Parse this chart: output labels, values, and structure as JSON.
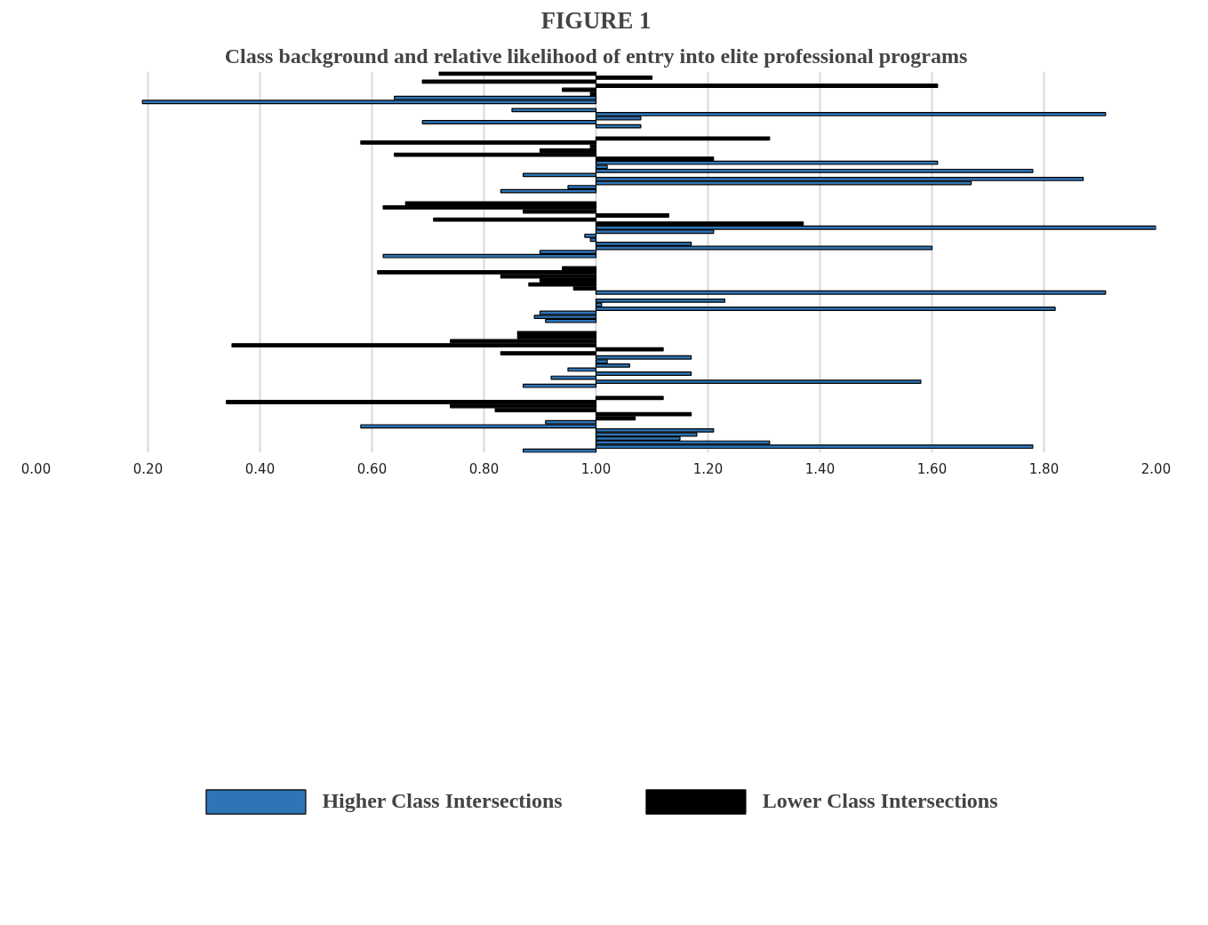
{
  "chart_data": {
    "type": "bar",
    "orientation": "horizontal",
    "title": "FIGURE 1",
    "subtitle": "Class background and relative likelihood of entry into elite professional programs",
    "categories": [
      null,
      null,
      null,
      null,
      null,
      null,
      null,
      null,
      null,
      null,
      null,
      null,
      null,
      null,
      null,
      null,
      null,
      null,
      null,
      null,
      null,
      null,
      null,
      null,
      null,
      null,
      null,
      null,
      null,
      null,
      null,
      null,
      null,
      null,
      null,
      null,
      null,
      null,
      null,
      null,
      null,
      null,
      null,
      null,
      null,
      null,
      null,
      null,
      null,
      null,
      null,
      null,
      null,
      null,
      null,
      null,
      null,
      null,
      null,
      null,
      null,
      null,
      null,
      null,
      null,
      null,
      null,
      null,
      null,
      null,
      null,
      null,
      null,
      null,
      null,
      null,
      null,
      null,
      null,
      null,
      null,
      null,
      null,
      null,
      null,
      null,
      null,
      null,
      null,
      null,
      null,
      null,
      null,
      null
    ],
    "series": [
      {
        "name": "Higher Class Intersections",
        "color": "#2e75b6",
        "base": [
          null,
          null,
          null,
          null,
          null,
          null,
          1,
          1,
          null,
          1,
          1,
          1,
          1,
          1,
          null,
          null,
          null,
          null,
          null,
          null,
          null,
          null,
          1,
          1,
          1,
          1,
          1,
          1,
          1,
          1,
          null,
          null,
          null,
          null,
          null,
          null,
          null,
          null,
          1,
          1,
          1,
          1,
          1,
          1,
          1,
          1,
          null,
          null,
          null,
          null,
          null,
          null,
          null,
          null,
          1,
          null,
          1,
          1,
          1,
          1,
          1,
          1,
          null,
          null,
          null,
          null,
          null,
          null,
          null,
          null,
          1,
          1,
          1,
          1,
          1,
          1,
          1,
          1,
          null,
          null,
          null,
          null,
          null,
          null,
          null,
          null,
          1,
          1,
          1,
          1,
          1,
          1,
          1,
          1
        ],
        "values": [
          null,
          null,
          null,
          null,
          null,
          null,
          -0.36,
          -0.81,
          null,
          -0.15,
          0.91,
          0.08,
          -0.31,
          0.08,
          null,
          null,
          null,
          null,
          null,
          null,
          null,
          null,
          0.61,
          0.02,
          0.78,
          -0.13,
          0.87,
          0.67,
          -0.05,
          -0.17,
          null,
          null,
          null,
          null,
          null,
          null,
          null,
          null,
          1.0,
          0.21,
          -0.02,
          -0.01,
          0.17,
          0.6,
          -0.1,
          -0.38,
          null,
          null,
          null,
          null,
          null,
          null,
          null,
          null,
          0.91,
          null,
          0.23,
          0.01,
          0.82,
          -0.1,
          -0.11,
          -0.09,
          null,
          null,
          null,
          null,
          null,
          null,
          null,
          null,
          0.17,
          0.02,
          0.06,
          -0.05,
          0.17,
          -0.08,
          0.58,
          -0.13,
          null,
          null,
          null,
          null,
          null,
          null,
          null,
          null,
          -0.09,
          -0.42,
          0.21,
          0.18,
          0.15,
          0.31,
          0.78,
          -0.13
        ]
      },
      {
        "name": "Lower Class Intersections",
        "color": "#000000",
        "base": [
          1,
          1,
          1,
          1,
          1,
          1,
          null,
          null,
          null,
          null,
          null,
          null,
          null,
          null,
          null,
          null,
          1,
          1,
          1,
          1,
          1,
          1,
          null,
          null,
          null,
          null,
          null,
          null,
          null,
          null,
          null,
          null,
          1,
          1,
          1,
          1,
          1,
          1,
          null,
          null,
          null,
          null,
          null,
          null,
          null,
          null,
          null,
          null,
          1,
          1,
          1,
          1,
          1,
          1,
          null,
          null,
          null,
          null,
          null,
          null,
          null,
          null,
          null,
          null,
          1,
          1,
          1,
          1,
          1,
          1,
          null,
          null,
          null,
          null,
          null,
          null,
          null,
          null,
          null,
          null,
          1,
          1,
          1,
          1,
          1,
          1,
          null,
          null,
          null,
          null,
          null,
          null,
          null,
          null
        ],
        "values": [
          -0.28,
          0.1,
          -0.31,
          0.61,
          -0.06,
          -0.01,
          null,
          null,
          null,
          null,
          null,
          null,
          null,
          null,
          null,
          null,
          0.31,
          -0.42,
          -0.01,
          -0.1,
          -0.36,
          0.21,
          null,
          null,
          null,
          null,
          null,
          null,
          null,
          null,
          null,
          null,
          -0.34,
          -0.38,
          -0.13,
          0.13,
          -0.29,
          0.37,
          null,
          null,
          null,
          null,
          null,
          null,
          null,
          null,
          null,
          null,
          -0.06,
          -0.39,
          -0.17,
          -0.1,
          -0.12,
          -0.04,
          null,
          null,
          null,
          null,
          null,
          null,
          null,
          null,
          null,
          null,
          -0.14,
          -0.14,
          -0.26,
          -0.65,
          0.12,
          -0.17,
          null,
          null,
          null,
          null,
          null,
          null,
          null,
          null,
          null,
          null,
          0.12,
          -0.66,
          -0.26,
          -0.18,
          0.17,
          0.07,
          null,
          null,
          null,
          null,
          null,
          null,
          null,
          null
        ]
      }
    ],
    "xlim": [
      0,
      2
    ],
    "xticks": [
      {
        "value": 0,
        "label": "0.00"
      },
      {
        "value": 0.2,
        "label": "0.20"
      },
      {
        "value": 0.4,
        "label": "0.40"
      },
      {
        "value": 0.6,
        "label": "0.60"
      },
      {
        "value": 0.8,
        "label": "0.80"
      },
      {
        "value": 1,
        "label": "1.00"
      },
      {
        "value": 1.2,
        "label": "1.20"
      },
      {
        "value": 1.4,
        "label": "1.40"
      },
      {
        "value": 1.6,
        "label": "1.60"
      },
      {
        "value": 1.8,
        "label": "1.80"
      },
      {
        "value": 2,
        "label": "2.00"
      }
    ],
    "grid": "x",
    "legend": "bottom",
    "tick_labels": "x"
  }
}
